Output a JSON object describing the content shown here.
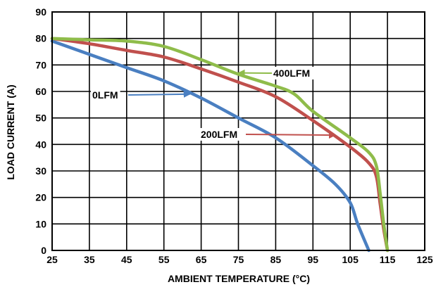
{
  "chart_data": {
    "type": "line",
    "title": "",
    "xlabel": "AMBIENT TEMPERATURE (°C)",
    "ylabel": "LOAD CURRENT (A)",
    "xlim": [
      25,
      125
    ],
    "ylim": [
      0,
      90
    ],
    "xticks": [
      25,
      35,
      45,
      55,
      65,
      75,
      85,
      95,
      105,
      115,
      125
    ],
    "yticks": [
      0,
      10,
      20,
      30,
      40,
      50,
      60,
      70,
      80,
      90
    ],
    "grid": true,
    "legend": "none (inline arrow annotations)",
    "series": [
      {
        "name": "0LFM",
        "color": "#4a7fc1",
        "x": [
          25,
          35,
          45,
          55,
          65,
          75,
          85,
          95,
          101,
          105,
          107,
          110
        ],
        "y": [
          79,
          74,
          69,
          64,
          57.5,
          50,
          42.5,
          32,
          25,
          18,
          10,
          0
        ]
      },
      {
        "name": "200LFM",
        "color": "#c0504d",
        "x": [
          25,
          35,
          45,
          55,
          65,
          75,
          85,
          95,
          105,
          110,
          112,
          113,
          114,
          115
        ],
        "y": [
          80,
          78,
          75.5,
          73,
          68.5,
          63.5,
          58,
          49,
          39,
          33,
          28,
          18,
          8,
          0
        ]
      },
      {
        "name": "400LFM",
        "color": "#8fbc4a",
        "x": [
          25,
          35,
          45,
          55,
          65,
          75,
          85,
          90,
          95,
          105,
          110,
          112,
          113,
          114,
          115
        ],
        "y": [
          80,
          79.5,
          79,
          77,
          72,
          66.5,
          62,
          59,
          52.5,
          42.5,
          37,
          32,
          22,
          10,
          0
        ]
      }
    ],
    "annotations": [
      {
        "text": "0LFM",
        "series": "0LFM"
      },
      {
        "text": "200LFM",
        "series": "200LFM"
      },
      {
        "text": "400LFM",
        "series": "400LFM"
      }
    ]
  }
}
